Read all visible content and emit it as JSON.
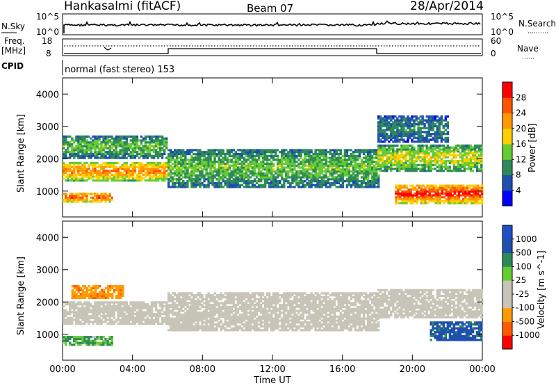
{
  "header": {
    "station": "Hankasalmi (fitACF)",
    "beam": "Beam 07",
    "date": "28/Apr/2014"
  },
  "top_panels": {
    "nsky": {
      "label": "N.Sky",
      "tick_top": "10^5",
      "tick_bottom": "10^0",
      "right_label": "N.Search",
      "right_tick_top": "10^5",
      "right_tick_bottom": "10^0"
    },
    "freq": {
      "label_1": "Freq.",
      "label_2": "[MHz]",
      "tick_top": "18",
      "tick_bottom": "8",
      "right_label": "Nave",
      "right_tick_top": "60",
      "right_tick_bottom": "0"
    },
    "cpid": {
      "label": "CPID",
      "text": "normal (fast stereo) 153"
    }
  },
  "colors": {
    "power_scale": [
      "#0000ff",
      "#1f4fb0",
      "#2e8b57",
      "#66cc33",
      "#ffd000",
      "#ff9900",
      "#ff5500",
      "#ff0000"
    ],
    "velocity_scale": [
      "#ff0000",
      "#ff5a00",
      "#ff9a00",
      "#c8c4b8",
      "#c8c4b8",
      "#66cc33",
      "#2e8b57",
      "#1f4fb0",
      "#2050c8"
    ],
    "ground_scatter": "#c8c4b8"
  },
  "chart_data": [
    {
      "type": "heatmap",
      "name": "power",
      "ylabel": "Slant Range [km]",
      "xlabel": "",
      "ylim": [
        200,
        4500
      ],
      "xlim": [
        0,
        24
      ],
      "yticks": [
        "1000",
        "2000",
        "3000",
        "4000"
      ],
      "xticks": [
        "00:00",
        "04:00",
        "08:00",
        "12:00",
        "16:00",
        "20:00",
        "00:00"
      ],
      "colorbar": {
        "label": "Power [dB]",
        "ticks": [
          "28",
          "24",
          "20",
          "16",
          "12",
          "8",
          "4"
        ],
        "range": [
          0,
          32
        ]
      },
      "regions": [
        {
          "t": [
            0,
            2.8
          ],
          "range_km": [
            650,
            950
          ],
          "power_db": 28
        },
        {
          "t": [
            0,
            6
          ],
          "range_km": [
            1300,
            1900
          ],
          "power_db": 24
        },
        {
          "t": [
            0,
            6
          ],
          "range_km": [
            2000,
            2700
          ],
          "power_db": 14
        },
        {
          "t": [
            6,
            18
          ],
          "range_km": [
            1100,
            2300
          ],
          "power_db": 14
        },
        {
          "t": [
            18,
            24
          ],
          "range_km": [
            1600,
            2400
          ],
          "power_db": 18
        },
        {
          "t": [
            19,
            24
          ],
          "range_km": [
            600,
            1200
          ],
          "power_db": 30
        },
        {
          "t": [
            18,
            22
          ],
          "range_km": [
            2500,
            3300
          ],
          "power_db": 10
        }
      ]
    },
    {
      "type": "heatmap",
      "name": "velocity",
      "ylabel": "Slant Range [km]",
      "xlabel": "Time UT",
      "ylim": [
        200,
        4500
      ],
      "xlim": [
        0,
        24
      ],
      "yticks": [
        "1000",
        "2000",
        "3000",
        "4000"
      ],
      "xticks": [
        "00:00",
        "04:00",
        "08:00",
        "12:00",
        "16:00",
        "20:00",
        "00:00"
      ],
      "colorbar": {
        "label": "Velocity [m s^-1]",
        "ticks": [
          "1000",
          "500",
          "100",
          "25",
          "-25",
          "-100",
          "-500",
          "-1000"
        ]
      },
      "regions": [
        {
          "t": [
            0,
            6
          ],
          "range_km": [
            1300,
            2000
          ],
          "velocity": 0
        },
        {
          "t": [
            0,
            2.8
          ],
          "range_km": [
            650,
            950
          ],
          "velocity": 150
        },
        {
          "t": [
            0.5,
            3.5
          ],
          "range_km": [
            2100,
            2500
          ],
          "velocity": -400
        },
        {
          "t": [
            6,
            18
          ],
          "range_km": [
            1100,
            2300
          ],
          "velocity": 0
        },
        {
          "t": [
            18,
            24
          ],
          "range_km": [
            1500,
            2400
          ],
          "velocity": 0
        },
        {
          "t": [
            21,
            24
          ],
          "range_km": [
            800,
            1400
          ],
          "velocity": 600
        }
      ]
    }
  ]
}
